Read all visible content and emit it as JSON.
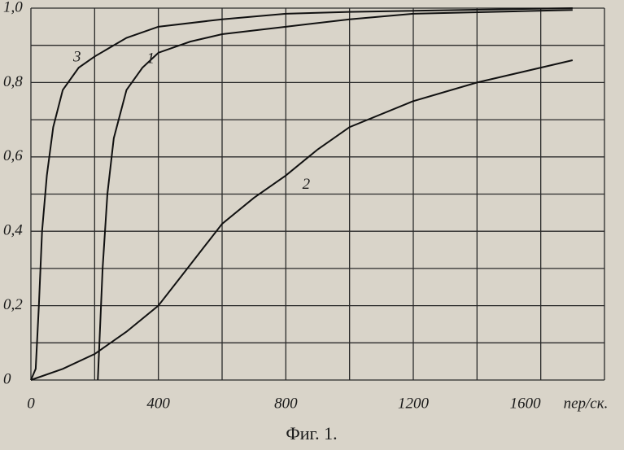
{
  "chart_data": {
    "type": "line",
    "x_label": "пер/ск.",
    "caption": "Фиг. 1.",
    "xlim": [
      0,
      1800
    ],
    "ylim": [
      0,
      1
    ],
    "xticks": [
      0,
      400,
      800,
      1200,
      1600
    ],
    "yticks": [
      0,
      {
        "value": 0.2,
        "label": "0,2"
      },
      {
        "value": 0.4,
        "label": "0,4"
      },
      {
        "value": 0.6,
        "label": "0,6"
      },
      {
        "value": 0.8,
        "label": "0,8"
      },
      {
        "value": 1,
        "label": "1,0"
      }
    ],
    "x_minor_ticks": [
      200,
      600,
      1000,
      1400,
      1800
    ],
    "y_minor_ticks": [
      0.1,
      0.3,
      0.5,
      0.7,
      0.9
    ],
    "grid": true,
    "series": [
      {
        "name": "1",
        "color": "#111111",
        "x": [
          210,
          215,
          225,
          240,
          260,
          300,
          350,
          400,
          500,
          600,
          800,
          1000,
          1200,
          1700
        ],
        "values": [
          0,
          0.1,
          0.3,
          0.5,
          0.65,
          0.78,
          0.84,
          0.88,
          0.91,
          0.93,
          0.95,
          0.97,
          0.985,
          0.995
        ]
      },
      {
        "name": "2",
        "color": "#111111",
        "x": [
          0,
          100,
          200,
          300,
          400,
          500,
          600,
          700,
          800,
          900,
          1000,
          1200,
          1400,
          1700
        ],
        "values": [
          0,
          0.03,
          0.07,
          0.13,
          0.2,
          0.31,
          0.42,
          0.49,
          0.55,
          0.62,
          0.68,
          0.75,
          0.8,
          0.86
        ]
      },
      {
        "name": "3",
        "color": "#111111",
        "x": [
          0,
          15,
          25,
          35,
          50,
          70,
          100,
          150,
          200,
          300,
          400,
          600,
          800,
          1000,
          1700
        ],
        "values": [
          0,
          0.03,
          0.2,
          0.4,
          0.55,
          0.68,
          0.78,
          0.84,
          0.87,
          0.92,
          0.95,
          0.97,
          0.985,
          0.99,
          1
        ]
      }
    ]
  }
}
